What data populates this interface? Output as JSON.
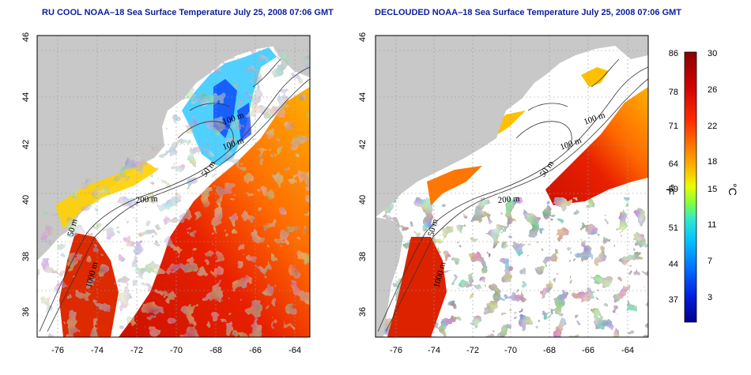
{
  "panels": [
    {
      "title": "RU COOL NOAA–18 Sea Surface Temperature July 25, 2008 07:06 GMT",
      "x_ticks": [
        "-76",
        "-74",
        "-72",
        "-70",
        "-68",
        "-66",
        "-64"
      ],
      "y_ticks": [
        "46",
        "44",
        "42",
        "40",
        "38",
        "36"
      ],
      "contour_labels": [
        "100 m",
        "100 m",
        "50 m",
        "200 m",
        "50 m",
        "1000 m"
      ]
    },
    {
      "title": "DECLOUDED NOAA–18 Sea Surface Temperature July 25, 2008 07:06 GMT",
      "x_ticks": [
        "-76",
        "-74",
        "-72",
        "-70",
        "-68",
        "-66",
        "-64"
      ],
      "y_ticks": [
        "46",
        "44",
        "42",
        "40",
        "38",
        "36"
      ],
      "contour_labels": [
        "100 m",
        "100 m",
        "50 m",
        "200 m",
        "50 m",
        "1000 m"
      ]
    }
  ],
  "colorbar": {
    "fahrenheit_ticks": [
      "86",
      "78",
      "71",
      "64",
      "59",
      "51",
      "44",
      "37"
    ],
    "celsius_ticks": [
      "30",
      "26",
      "22",
      "18",
      "15",
      "11",
      "7",
      "3"
    ],
    "fahrenheit_label": "°F",
    "celsius_label": "°C",
    "colors": [
      "#8b0000",
      "#cc0000",
      "#ff2200",
      "#ff6a00",
      "#ffaa00",
      "#ffe000",
      "#aaff00",
      "#40ffc0",
      "#00d0ff",
      "#0070ff",
      "#0000cc",
      "#00008b"
    ]
  },
  "map_colors": {
    "land": "#c8c8c8",
    "cloud": "#ffffff",
    "warm": "#dd2200",
    "orange": "#ff8800",
    "yellow": "#ffd000",
    "green": "#88e000",
    "cyan": "#30d8ff",
    "blue": "#0030ff"
  }
}
